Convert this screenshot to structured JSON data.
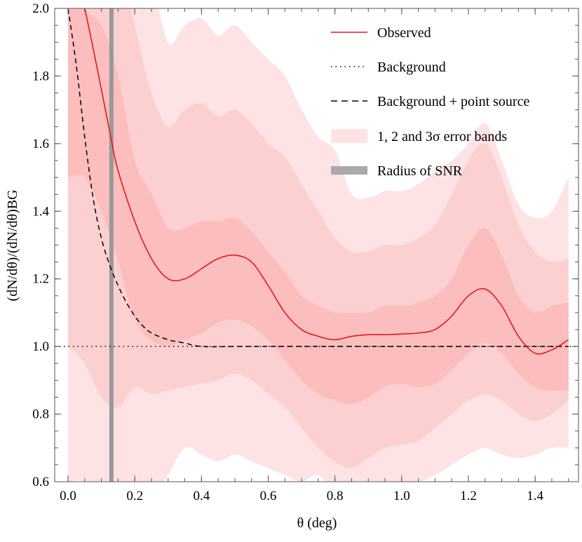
{
  "chart_data": {
    "type": "line",
    "xlabel": "θ (deg)",
    "ylabel": "(dN/dθ)/(dN/dθ)BG",
    "xlim": [
      -0.04,
      1.53
    ],
    "ylim": [
      0.6,
      2.0
    ],
    "x_ticks": [
      "0.0",
      "0.2",
      "0.4",
      "0.6",
      "0.8",
      "1.0",
      "1.2",
      "1.4"
    ],
    "y_ticks": [
      "0.6",
      "0.8",
      "1.0",
      "1.2",
      "1.4",
      "1.6",
      "1.8",
      "2.0"
    ],
    "grid": false,
    "legend_position": "top-right",
    "legend": [
      {
        "label": "Observed",
        "style": "solid-red"
      },
      {
        "label": "Background",
        "style": "dotted"
      },
      {
        "label": "Background + point source",
        "style": "dashed"
      },
      {
        "label": "1, 2 and 3σ error bands",
        "style": "band"
      },
      {
        "label": "Radius of SNR",
        "style": "gray-bar"
      }
    ],
    "snr_radius_deg": 0.13,
    "colors": {
      "observed": "#e41a1c",
      "band1": "#fbbdbd",
      "band2": "#fcd0d0",
      "band3": "#fde3e3",
      "snr": "#999999",
      "background": "#000000"
    },
    "background_level": 1.0,
    "observed": {
      "x": [
        0.0,
        0.05,
        0.1,
        0.13,
        0.15,
        0.2,
        0.25,
        0.3,
        0.35,
        0.4,
        0.45,
        0.5,
        0.55,
        0.6,
        0.65,
        0.7,
        0.75,
        0.8,
        0.85,
        0.9,
        0.95,
        1.0,
        1.05,
        1.1,
        1.15,
        1.2,
        1.25,
        1.3,
        1.35,
        1.4,
        1.45,
        1.5
      ],
      "y": [
        2.2,
        2.0,
        1.76,
        1.61,
        1.52,
        1.37,
        1.26,
        1.2,
        1.2,
        1.23,
        1.26,
        1.27,
        1.25,
        1.18,
        1.1,
        1.05,
        1.03,
        1.02,
        1.03,
        1.035,
        1.035,
        1.037,
        1.04,
        1.05,
        1.09,
        1.15,
        1.17,
        1.12,
        1.03,
        0.98,
        0.99,
        1.02
      ]
    },
    "background_plus_point_source": {
      "x": [
        0.0,
        0.025,
        0.05,
        0.075,
        0.1,
        0.125,
        0.15,
        0.175,
        0.2,
        0.225,
        0.25,
        0.3,
        0.35,
        0.4,
        0.5,
        0.6,
        0.8,
        1.0,
        1.2,
        1.4,
        1.5
      ],
      "y": [
        2.0,
        1.83,
        1.62,
        1.44,
        1.32,
        1.24,
        1.18,
        1.13,
        1.09,
        1.06,
        1.04,
        1.02,
        1.01,
        1.0,
        1.0,
        1.0,
        1.0,
        1.0,
        1.0,
        1.0,
        1.0
      ]
    },
    "error_bands": {
      "x": [
        0.0,
        0.05,
        0.1,
        0.15,
        0.2,
        0.25,
        0.3,
        0.35,
        0.4,
        0.45,
        0.5,
        0.55,
        0.6,
        0.65,
        0.7,
        0.75,
        0.8,
        0.85,
        0.9,
        0.95,
        1.0,
        1.05,
        1.1,
        1.15,
        1.2,
        1.25,
        1.3,
        1.35,
        1.4,
        1.45,
        1.5
      ],
      "sigma1_upper": [
        2.1,
        2.0,
        1.95,
        1.8,
        1.55,
        1.45,
        1.35,
        1.35,
        1.37,
        1.37,
        1.38,
        1.34,
        1.28,
        1.22,
        1.15,
        1.12,
        1.1,
        1.1,
        1.1,
        1.12,
        1.12,
        1.13,
        1.15,
        1.2,
        1.3,
        1.35,
        1.27,
        1.15,
        1.1,
        1.12,
        1.13
      ],
      "sigma1_lower": [
        1.5,
        1.5,
        1.4,
        1.25,
        1.08,
        1.02,
        1.0,
        1.02,
        1.04,
        1.07,
        1.08,
        1.06,
        1.02,
        0.96,
        0.9,
        0.86,
        0.84,
        0.83,
        0.85,
        0.88,
        0.89,
        0.88,
        0.89,
        0.93,
        0.98,
        1.01,
        0.98,
        0.92,
        0.88,
        0.87,
        0.87
      ],
      "sigma2_upper": [
        2.3,
        2.25,
        2.2,
        2.15,
        1.95,
        1.75,
        1.65,
        1.7,
        1.72,
        1.68,
        1.7,
        1.66,
        1.6,
        1.56,
        1.48,
        1.4,
        1.32,
        1.28,
        1.28,
        1.3,
        1.3,
        1.32,
        1.36,
        1.45,
        1.55,
        1.6,
        1.5,
        1.36,
        1.28,
        1.25,
        1.26
      ],
      "sigma2_lower": [
        1.0,
        0.95,
        0.85,
        0.82,
        0.88,
        0.86,
        0.87,
        0.88,
        0.89,
        0.9,
        0.92,
        0.9,
        0.86,
        0.82,
        0.76,
        0.7,
        0.66,
        0.64,
        0.67,
        0.7,
        0.71,
        0.72,
        0.76,
        0.8,
        0.84,
        0.86,
        0.84,
        0.8,
        0.78,
        0.8,
        0.84
      ],
      "sigma3_upper": [
        2.5,
        2.5,
        2.45,
        2.4,
        2.3,
        2.1,
        1.9,
        1.95,
        1.97,
        1.92,
        1.95,
        1.9,
        1.85,
        1.8,
        1.7,
        1.62,
        1.58,
        1.45,
        1.44,
        1.46,
        1.46,
        1.48,
        1.52,
        1.55,
        1.6,
        1.66,
        1.55,
        1.42,
        1.38,
        1.4,
        1.5
      ],
      "sigma3_lower": [
        0.6,
        0.6,
        0.55,
        0.55,
        0.6,
        0.55,
        0.62,
        0.7,
        0.68,
        0.66,
        0.68,
        0.66,
        0.64,
        0.62,
        0.6,
        0.62,
        0.56,
        0.53,
        0.55,
        0.58,
        0.6,
        0.6,
        0.62,
        0.65,
        0.68,
        0.7,
        0.68,
        0.67,
        0.68,
        0.7,
        0.7
      ]
    }
  }
}
